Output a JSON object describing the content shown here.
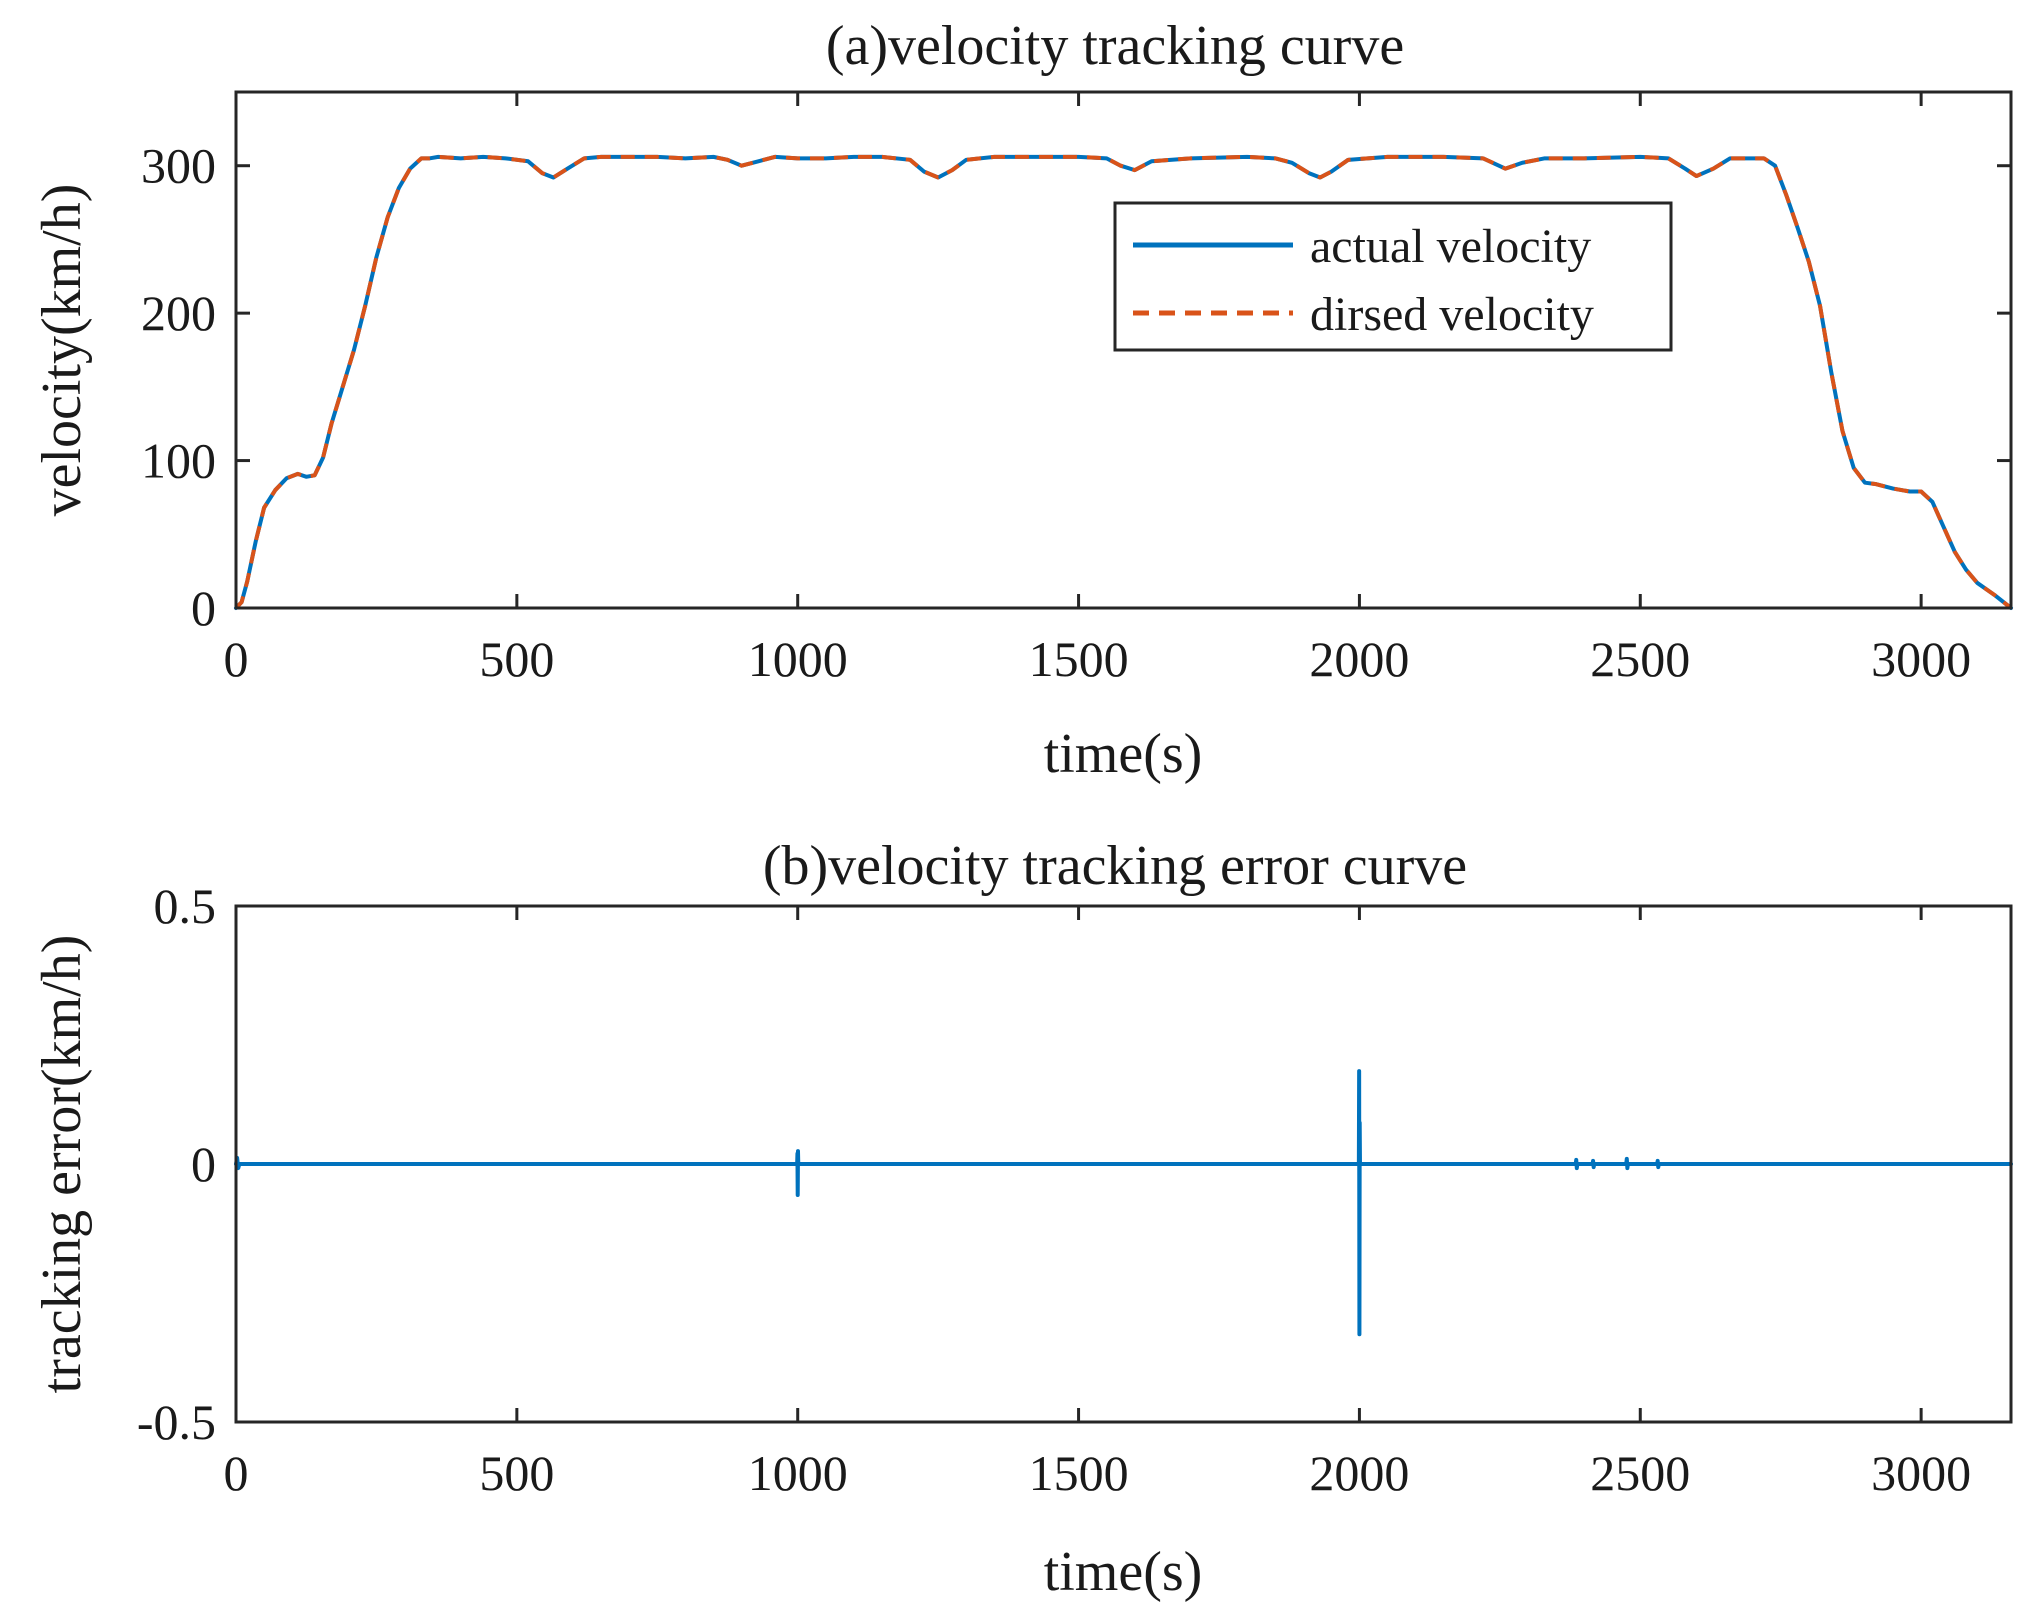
{
  "colors": {
    "actual": "#0072BD",
    "desired": "#D95319",
    "axis": "#262626"
  },
  "chart_data": [
    {
      "type": "line",
      "title": "(a)velocity tracking curve",
      "xlabel": "time(s)",
      "ylabel": "velocity(km/h)",
      "xlim": [
        0,
        3160
      ],
      "ylim": [
        0,
        350
      ],
      "xticks": [
        0,
        500,
        1000,
        1500,
        2000,
        2500,
        3000
      ],
      "yticks": [
        0,
        100,
        200,
        300
      ],
      "xtick_labels": [
        "0",
        "500",
        "1000",
        "1500",
        "2000",
        "2500",
        "3000"
      ],
      "ytick_labels": [
        "0",
        "100",
        "200",
        "300"
      ],
      "legend_position": "upper-right",
      "series": [
        {
          "name": "actual velocity",
          "style": "solid",
          "x": [
            0,
            10,
            20,
            35,
            50,
            70,
            90,
            110,
            125,
            140,
            155,
            170,
            190,
            210,
            230,
            250,
            270,
            290,
            310,
            330,
            345,
            360,
            400,
            440,
            480,
            520,
            545,
            565,
            590,
            620,
            650,
            700,
            750,
            800,
            850,
            875,
            900,
            930,
            960,
            1000,
            1050,
            1100,
            1150,
            1200,
            1225,
            1250,
            1275,
            1300,
            1350,
            1400,
            1450,
            1500,
            1550,
            1575,
            1600,
            1630,
            1700,
            1800,
            1850,
            1880,
            1910,
            1930,
            1950,
            1980,
            2050,
            2150,
            2220,
            2260,
            2290,
            2330,
            2400,
            2500,
            2550,
            2580,
            2600,
            2630,
            2660,
            2720,
            2740,
            2760,
            2780,
            2800,
            2820,
            2840,
            2860,
            2880,
            2900,
            2920,
            2950,
            2980,
            3000,
            3020,
            3040,
            3060,
            3080,
            3100,
            3130,
            3160
          ],
          "y": [
            0,
            4,
            18,
            45,
            68,
            80,
            88,
            91,
            89,
            90,
            102,
            125,
            150,
            175,
            205,
            238,
            265,
            285,
            298,
            305,
            305,
            306,
            305,
            306,
            305,
            303,
            295,
            292,
            298,
            305,
            306,
            306,
            306,
            305,
            306,
            304,
            300,
            303,
            306,
            305,
            305,
            306,
            306,
            304,
            296,
            292,
            297,
            304,
            306,
            306,
            306,
            306,
            305,
            300,
            297,
            303,
            305,
            306,
            305,
            302,
            295,
            292,
            296,
            304,
            306,
            306,
            305,
            298,
            302,
            305,
            305,
            306,
            305,
            298,
            293,
            298,
            305,
            305,
            300,
            280,
            258,
            235,
            205,
            160,
            120,
            95,
            85,
            84,
            81,
            79,
            79,
            72,
            55,
            38,
            26,
            17,
            9,
            0
          ]
        },
        {
          "name": "dirsed velocity",
          "style": "dashed",
          "x": [
            0,
            10,
            20,
            35,
            50,
            70,
            90,
            110,
            125,
            140,
            155,
            170,
            190,
            210,
            230,
            250,
            270,
            290,
            310,
            330,
            345,
            360,
            400,
            440,
            480,
            520,
            545,
            565,
            590,
            620,
            650,
            700,
            750,
            800,
            850,
            875,
            900,
            930,
            960,
            1000,
            1050,
            1100,
            1150,
            1200,
            1225,
            1250,
            1275,
            1300,
            1350,
            1400,
            1450,
            1500,
            1550,
            1575,
            1600,
            1630,
            1700,
            1800,
            1850,
            1880,
            1910,
            1930,
            1950,
            1980,
            2050,
            2150,
            2220,
            2260,
            2290,
            2330,
            2400,
            2500,
            2550,
            2580,
            2600,
            2630,
            2660,
            2720,
            2740,
            2760,
            2780,
            2800,
            2820,
            2840,
            2860,
            2880,
            2900,
            2920,
            2950,
            2980,
            3000,
            3020,
            3040,
            3060,
            3080,
            3100,
            3130,
            3160
          ],
          "y": [
            0,
            4,
            18,
            45,
            68,
            80,
            88,
            91,
            89,
            90,
            102,
            125,
            150,
            175,
            205,
            238,
            265,
            285,
            298,
            305,
            305,
            306,
            305,
            306,
            305,
            303,
            295,
            292,
            298,
            305,
            306,
            306,
            306,
            305,
            306,
            304,
            300,
            303,
            306,
            305,
            305,
            306,
            306,
            304,
            296,
            292,
            297,
            304,
            306,
            306,
            306,
            306,
            305,
            300,
            297,
            303,
            305,
            306,
            305,
            302,
            295,
            292,
            296,
            304,
            306,
            306,
            305,
            298,
            302,
            305,
            305,
            306,
            305,
            298,
            293,
            298,
            305,
            305,
            300,
            280,
            258,
            235,
            205,
            160,
            120,
            95,
            85,
            84,
            81,
            79,
            79,
            72,
            55,
            38,
            26,
            17,
            9,
            0
          ]
        }
      ]
    },
    {
      "type": "line",
      "title": "(b)velocity tracking error curve",
      "xlabel": "time(s)",
      "ylabel": "tracking error(km/h)",
      "xlim": [
        0,
        3160
      ],
      "ylim": [
        -0.5,
        0.5
      ],
      "xticks": [
        0,
        500,
        1000,
        1500,
        2000,
        2500,
        3000
      ],
      "yticks": [
        -0.5,
        0,
        0.5
      ],
      "xtick_labels": [
        "0",
        "500",
        "1000",
        "1500",
        "2000",
        "2500",
        "3000"
      ],
      "ytick_labels": [
        "-0.5",
        "0",
        "0.5"
      ],
      "series": [
        {
          "name": "tracking error",
          "style": "solid",
          "x": [
            0,
            2,
            4,
            6,
            500,
            999,
            999.5,
            1000,
            1000.5,
            1001,
            1500,
            1999,
            1999.5,
            2000,
            2000.5,
            2001,
            2385,
            2386,
            2387,
            2388,
            2415,
            2416,
            2417,
            2418,
            2475,
            2476,
            2477,
            2478,
            2530,
            2531,
            2532,
            2533,
            3000,
            3160
          ],
          "y": [
            0,
            0.012,
            -0.008,
            0,
            0,
            0,
            0.02,
            -0.06,
            0.025,
            0,
            0,
            0,
            0.18,
            -0.33,
            0.08,
            0,
            0,
            0.008,
            -0.008,
            0,
            0,
            0.006,
            -0.006,
            0,
            0,
            0.01,
            -0.008,
            0,
            0,
            0.006,
            -0.006,
            0,
            0,
            0
          ]
        }
      ]
    }
  ]
}
